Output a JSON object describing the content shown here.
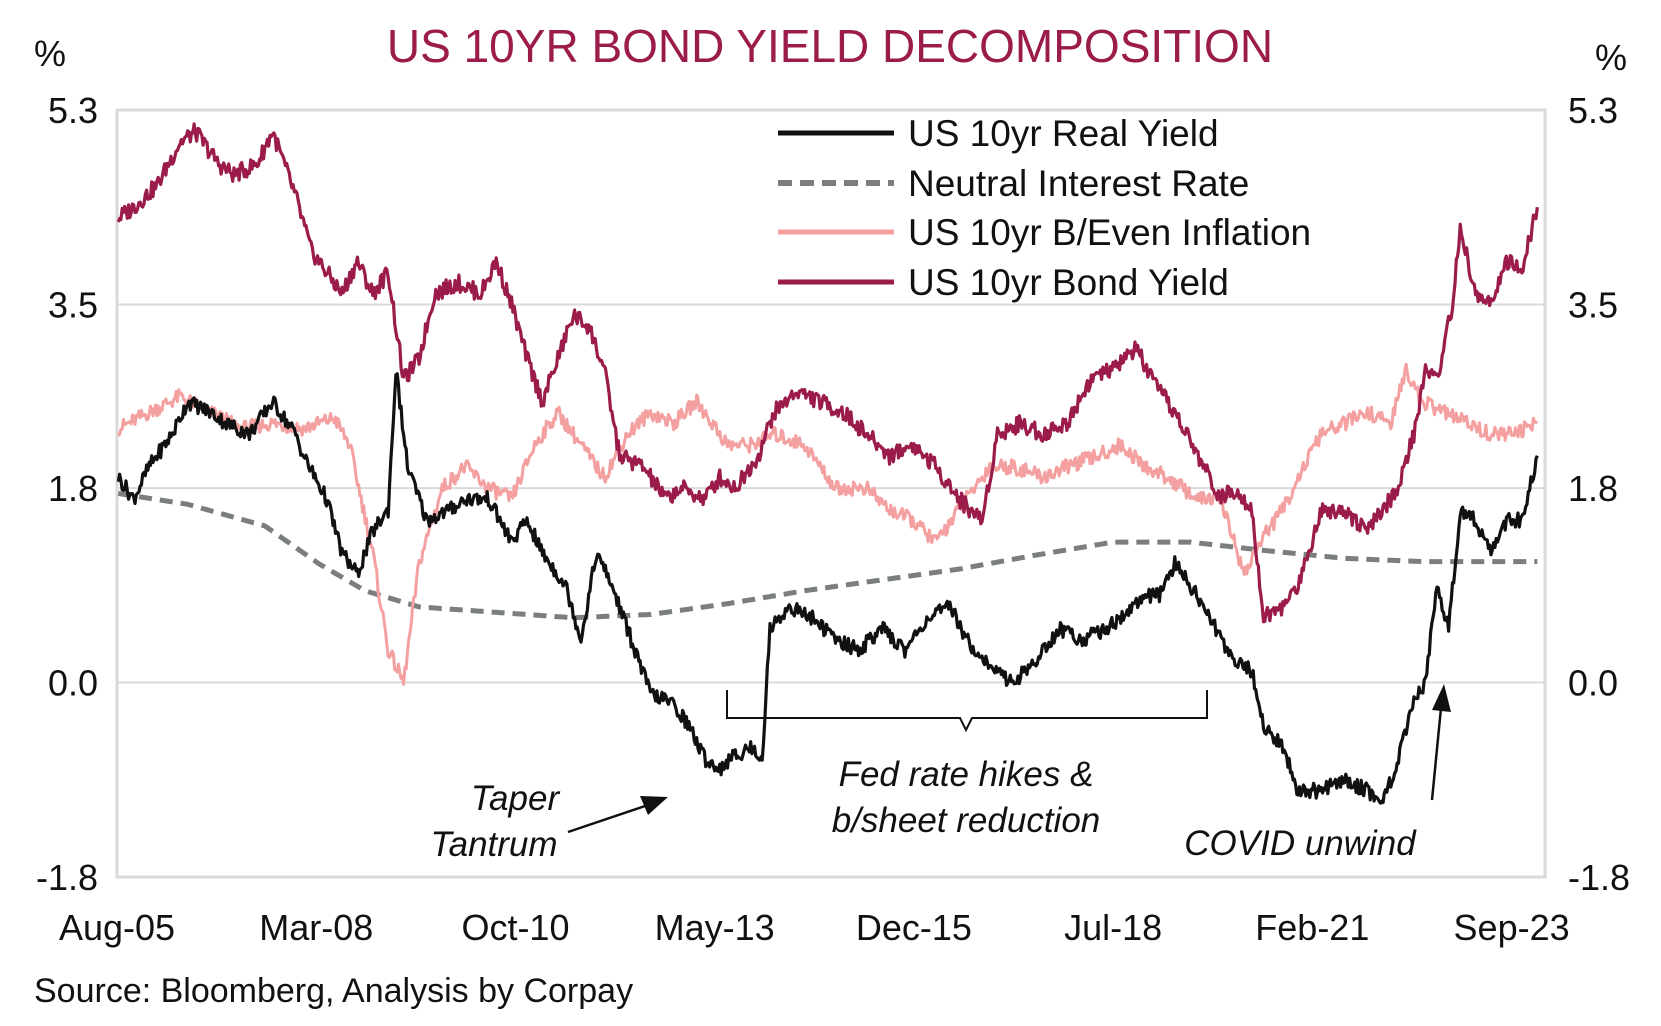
{
  "source": "Source: Bloomberg, Analysis by Corpay",
  "chart_data": {
    "type": "line",
    "title": "US 10YR BOND YIELD DECOMPOSITION",
    "y_unit_left": "%",
    "y_unit_right": "%",
    "ylim": [
      -1.8,
      5.3
    ],
    "y_ticks": [
      "5.3",
      "3.5",
      "1.8",
      "0.0",
      "-1.8"
    ],
    "y_tick_values": [
      5.3,
      3.5,
      1.8,
      0.0,
      -1.8
    ],
    "xlim": [
      2005.583,
      2024.1
    ],
    "x_ticks": [
      "Aug-05",
      "Mar-08",
      "Oct-10",
      "May-13",
      "Dec-15",
      "Jul-18",
      "Feb-21",
      "Sep-23"
    ],
    "x_tick_values": [
      2005.583,
      2008.167,
      2010.75,
      2013.333,
      2015.917,
      2018.5,
      2021.083,
      2023.667
    ],
    "grid": "horizontal",
    "legend_position": "top-right",
    "colors": {
      "real": "#111111",
      "neutral": "#7a7f7c",
      "breakeven": "#f4a0a0",
      "bond": "#9b1b4b",
      "title": "#9b1b4b"
    },
    "series": [
      {
        "key": "real",
        "name": "US 10yr Real Yield",
        "style": "solid",
        "points": [
          [
            2005.6,
            1.9
          ],
          [
            2005.8,
            1.7
          ],
          [
            2006.0,
            2.0
          ],
          [
            2006.3,
            2.3
          ],
          [
            2006.5,
            2.6
          ],
          [
            2006.8,
            2.5
          ],
          [
            2007.0,
            2.4
          ],
          [
            2007.3,
            2.3
          ],
          [
            2007.6,
            2.6
          ],
          [
            2007.9,
            2.3
          ],
          [
            2008.0,
            2.1
          ],
          [
            2008.3,
            1.7
          ],
          [
            2008.5,
            1.2
          ],
          [
            2008.7,
            1.0
          ],
          [
            2008.9,
            1.4
          ],
          [
            2009.1,
            1.6
          ],
          [
            2009.2,
            2.9
          ],
          [
            2009.35,
            2.0
          ],
          [
            2009.6,
            1.5
          ],
          [
            2009.9,
            1.6
          ],
          [
            2010.1,
            1.7
          ],
          [
            2010.4,
            1.7
          ],
          [
            2010.7,
            1.3
          ],
          [
            2010.9,
            1.5
          ],
          [
            2011.1,
            1.2
          ],
          [
            2011.4,
            0.9
          ],
          [
            2011.6,
            0.4
          ],
          [
            2011.8,
            1.2
          ],
          [
            2012.0,
            0.9
          ],
          [
            2012.3,
            0.3
          ],
          [
            2012.5,
            -0.1
          ],
          [
            2012.8,
            -0.2
          ],
          [
            2013.0,
            -0.4
          ],
          [
            2013.2,
            -0.7
          ],
          [
            2013.4,
            -0.8
          ],
          [
            2013.55,
            -0.7
          ],
          [
            2013.8,
            -0.6
          ],
          [
            2013.95,
            -0.7
          ],
          [
            2014.05,
            0.5
          ],
          [
            2014.3,
            0.7
          ],
          [
            2014.6,
            0.6
          ],
          [
            2014.9,
            0.4
          ],
          [
            2015.2,
            0.3
          ],
          [
            2015.5,
            0.5
          ],
          [
            2015.8,
            0.3
          ],
          [
            2016.1,
            0.6
          ],
          [
            2016.4,
            0.7
          ],
          [
            2016.6,
            0.4
          ],
          [
            2016.9,
            0.15
          ],
          [
            2017.2,
            0.0
          ],
          [
            2017.5,
            0.2
          ],
          [
            2017.8,
            0.5
          ],
          [
            2018.1,
            0.4
          ],
          [
            2018.4,
            0.5
          ],
          [
            2018.6,
            0.6
          ],
          [
            2018.9,
            0.8
          ],
          [
            2019.1,
            0.8
          ],
          [
            2019.3,
            1.1
          ],
          [
            2019.6,
            0.8
          ],
          [
            2019.9,
            0.4
          ],
          [
            2020.1,
            0.2
          ],
          [
            2020.3,
            0.1
          ],
          [
            2020.45,
            -0.4
          ],
          [
            2020.7,
            -0.6
          ],
          [
            2020.9,
            -1.0
          ],
          [
            2021.2,
            -1.0
          ],
          [
            2021.5,
            -0.9
          ],
          [
            2021.8,
            -1.0
          ],
          [
            2022.0,
            -1.1
          ],
          [
            2022.2,
            -0.7
          ],
          [
            2022.4,
            -0.2
          ],
          [
            2022.55,
            0.0
          ],
          [
            2022.7,
            0.9
          ],
          [
            2022.85,
            0.5
          ],
          [
            2023.0,
            1.6
          ],
          [
            2023.2,
            1.5
          ],
          [
            2023.4,
            1.2
          ],
          [
            2023.6,
            1.5
          ],
          [
            2023.8,
            1.5
          ],
          [
            2024.0,
            2.1
          ]
        ]
      },
      {
        "key": "neutral",
        "name": "Neutral Interest Rate",
        "style": "dashed",
        "points": [
          [
            2005.6,
            1.75
          ],
          [
            2006.5,
            1.65
          ],
          [
            2007.5,
            1.45
          ],
          [
            2008.2,
            1.1
          ],
          [
            2008.8,
            0.85
          ],
          [
            2009.5,
            0.7
          ],
          [
            2010.5,
            0.65
          ],
          [
            2011.5,
            0.6
          ],
          [
            2012.5,
            0.63
          ],
          [
            2013.5,
            0.73
          ],
          [
            2014.5,
            0.85
          ],
          [
            2015.5,
            0.95
          ],
          [
            2016.5,
            1.05
          ],
          [
            2017.5,
            1.18
          ],
          [
            2018.5,
            1.3
          ],
          [
            2019.5,
            1.3
          ],
          [
            2020.5,
            1.22
          ],
          [
            2021.5,
            1.15
          ],
          [
            2022.5,
            1.12
          ],
          [
            2023.5,
            1.12
          ],
          [
            2024.0,
            1.12
          ]
        ]
      },
      {
        "key": "breakeven",
        "name": "US 10yr B/Even Inflation",
        "style": "solid",
        "points": [
          [
            2005.6,
            2.35
          ],
          [
            2006.0,
            2.5
          ],
          [
            2006.4,
            2.65
          ],
          [
            2006.8,
            2.5
          ],
          [
            2007.2,
            2.35
          ],
          [
            2007.6,
            2.4
          ],
          [
            2008.0,
            2.35
          ],
          [
            2008.4,
            2.45
          ],
          [
            2008.6,
            2.2
          ],
          [
            2008.9,
            1.2
          ],
          [
            2009.1,
            0.3
          ],
          [
            2009.3,
            0.0
          ],
          [
            2009.5,
            1.1
          ],
          [
            2009.8,
            1.8
          ],
          [
            2010.1,
            2.0
          ],
          [
            2010.4,
            1.8
          ],
          [
            2010.7,
            1.7
          ],
          [
            2011.0,
            2.2
          ],
          [
            2011.3,
            2.5
          ],
          [
            2011.6,
            2.2
          ],
          [
            2011.9,
            1.9
          ],
          [
            2012.2,
            2.3
          ],
          [
            2012.5,
            2.5
          ],
          [
            2012.8,
            2.4
          ],
          [
            2013.1,
            2.6
          ],
          [
            2013.5,
            2.2
          ],
          [
            2013.8,
            2.2
          ],
          [
            2014.1,
            2.3
          ],
          [
            2014.5,
            2.2
          ],
          [
            2014.9,
            1.8
          ],
          [
            2015.3,
            1.8
          ],
          [
            2015.6,
            1.6
          ],
          [
            2015.9,
            1.5
          ],
          [
            2016.2,
            1.3
          ],
          [
            2016.5,
            1.6
          ],
          [
            2016.9,
            2.0
          ],
          [
            2017.2,
            2.0
          ],
          [
            2017.6,
            1.9
          ],
          [
            2017.9,
            2.0
          ],
          [
            2018.3,
            2.1
          ],
          [
            2018.6,
            2.2
          ],
          [
            2018.9,
            2.0
          ],
          [
            2019.2,
            1.9
          ],
          [
            2019.6,
            1.7
          ],
          [
            2019.9,
            1.7
          ],
          [
            2020.2,
            1.0
          ],
          [
            2020.4,
            1.3
          ],
          [
            2020.7,
            1.6
          ],
          [
            2020.9,
            1.9
          ],
          [
            2021.2,
            2.3
          ],
          [
            2021.5,
            2.4
          ],
          [
            2021.8,
            2.5
          ],
          [
            2022.1,
            2.4
          ],
          [
            2022.3,
            2.9
          ],
          [
            2022.5,
            2.6
          ],
          [
            2022.8,
            2.5
          ],
          [
            2023.1,
            2.4
          ],
          [
            2023.4,
            2.3
          ],
          [
            2023.7,
            2.3
          ],
          [
            2024.0,
            2.4
          ]
        ]
      },
      {
        "key": "bond",
        "name": "US 10yr Bond Yield",
        "style": "solid",
        "points": [
          [
            2005.6,
            4.3
          ],
          [
            2005.8,
            4.4
          ],
          [
            2006.1,
            4.6
          ],
          [
            2006.4,
            5.0
          ],
          [
            2006.6,
            5.1
          ],
          [
            2006.9,
            4.8
          ],
          [
            2007.1,
            4.7
          ],
          [
            2007.4,
            4.8
          ],
          [
            2007.6,
            5.1
          ],
          [
            2007.9,
            4.5
          ],
          [
            2008.1,
            4.0
          ],
          [
            2008.3,
            3.8
          ],
          [
            2008.5,
            3.6
          ],
          [
            2008.7,
            3.9
          ],
          [
            2008.9,
            3.6
          ],
          [
            2009.1,
            3.8
          ],
          [
            2009.3,
            2.8
          ],
          [
            2009.5,
            3.0
          ],
          [
            2009.7,
            3.6
          ],
          [
            2010.0,
            3.7
          ],
          [
            2010.3,
            3.6
          ],
          [
            2010.5,
            3.9
          ],
          [
            2010.7,
            3.5
          ],
          [
            2010.9,
            3.0
          ],
          [
            2011.1,
            2.6
          ],
          [
            2011.3,
            3.0
          ],
          [
            2011.5,
            3.4
          ],
          [
            2011.7,
            3.3
          ],
          [
            2011.9,
            2.9
          ],
          [
            2012.1,
            2.1
          ],
          [
            2012.4,
            2.0
          ],
          [
            2012.7,
            1.7
          ],
          [
            2012.9,
            1.8
          ],
          [
            2013.2,
            1.7
          ],
          [
            2013.4,
            1.9
          ],
          [
            2013.6,
            1.8
          ],
          [
            2013.9,
            2.1
          ],
          [
            2014.1,
            2.5
          ],
          [
            2014.4,
            2.7
          ],
          [
            2014.7,
            2.6
          ],
          [
            2015.0,
            2.5
          ],
          [
            2015.3,
            2.3
          ],
          [
            2015.6,
            2.1
          ],
          [
            2015.9,
            2.2
          ],
          [
            2016.2,
            2.0
          ],
          [
            2016.5,
            1.7
          ],
          [
            2016.8,
            1.5
          ],
          [
            2017.0,
            2.3
          ],
          [
            2017.3,
            2.4
          ],
          [
            2017.6,
            2.3
          ],
          [
            2017.9,
            2.4
          ],
          [
            2018.2,
            2.8
          ],
          [
            2018.5,
            2.9
          ],
          [
            2018.8,
            3.1
          ],
          [
            2019.0,
            2.8
          ],
          [
            2019.3,
            2.5
          ],
          [
            2019.6,
            2.1
          ],
          [
            2019.9,
            1.7
          ],
          [
            2020.1,
            1.8
          ],
          [
            2020.3,
            1.6
          ],
          [
            2020.45,
            0.6
          ],
          [
            2020.7,
            0.7
          ],
          [
            2020.9,
            0.9
          ],
          [
            2021.2,
            1.6
          ],
          [
            2021.5,
            1.6
          ],
          [
            2021.8,
            1.4
          ],
          [
            2022.0,
            1.6
          ],
          [
            2022.2,
            1.8
          ],
          [
            2022.4,
            2.3
          ],
          [
            2022.55,
            2.9
          ],
          [
            2022.7,
            2.8
          ],
          [
            2022.9,
            3.5
          ],
          [
            2023.0,
            4.2
          ],
          [
            2023.2,
            3.6
          ],
          [
            2023.4,
            3.5
          ],
          [
            2023.6,
            3.9
          ],
          [
            2023.8,
            3.8
          ],
          [
            2024.0,
            4.4
          ]
        ]
      }
    ],
    "annotations": {
      "taper": [
        "Taper",
        "Tantrum"
      ],
      "fed": [
        "Fed rate hikes &",
        "b/sheet reduction"
      ],
      "covid": "COVID unwind"
    }
  }
}
